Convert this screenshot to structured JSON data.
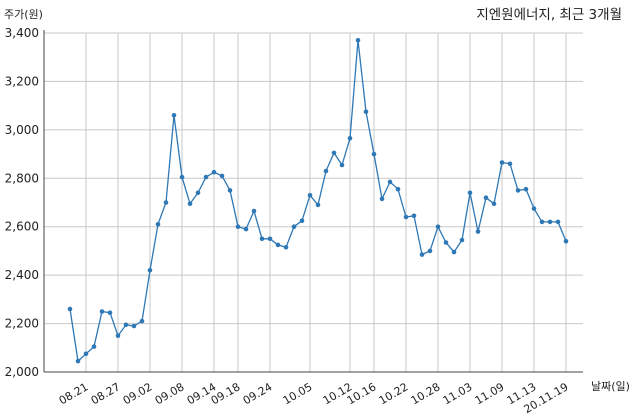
{
  "chart_data": {
    "type": "line",
    "title": "지엔원에너지, 최근 3개월",
    "ylabel": "주가(원)",
    "xlabel": "날짜(일)",
    "ylim": [
      2000,
      3400
    ],
    "yticks": [
      2000,
      2200,
      2400,
      2600,
      2800,
      3000,
      3200,
      3400
    ],
    "ytick_labels": [
      "2,000",
      "2,200",
      "2,400",
      "2,600",
      "2,800",
      "3,000",
      "3,200",
      "3,400"
    ],
    "xtick_labels": [
      "08.21",
      "08.27",
      "09.02",
      "09.08",
      "09.14",
      "09.18",
      "09.24",
      "10.05",
      "10.12",
      "10.16",
      "10.22",
      "10.28",
      "11.03",
      "11.09",
      "11.13",
      "20.11.19"
    ],
    "xtick_index": [
      2,
      6,
      10,
      14,
      18,
      21,
      25,
      30,
      35,
      38,
      42,
      46,
      50,
      54,
      58,
      62
    ],
    "grid": true,
    "color": "#2e78b6",
    "values": [
      2260,
      2045,
      2075,
      2105,
      2250,
      2245,
      2150,
      2195,
      2190,
      2210,
      2420,
      2610,
      2700,
      3060,
      2805,
      2695,
      2740,
      2805,
      2825,
      2810,
      2750,
      2600,
      2590,
      2665,
      2550,
      2550,
      2525,
      2515,
      2600,
      2625,
      2730,
      2690,
      2830,
      2905,
      2855,
      2965,
      3370,
      3075,
      2900,
      2715,
      2785,
      2755,
      2640,
      2645,
      2485,
      2500,
      2600,
      2535,
      2495,
      2545,
      2740,
      2580,
      2720,
      2695,
      2865,
      2860,
      2750,
      2755,
      2675,
      2620,
      2620,
      2620,
      2540
    ]
  }
}
